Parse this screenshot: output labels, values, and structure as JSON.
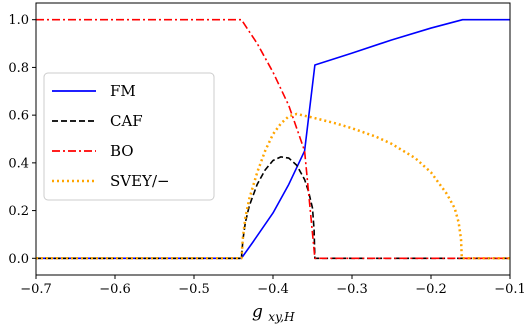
{
  "chart_data": {
    "type": "line",
    "title": "",
    "xlabel": "g",
    "xlabel_sub": "xy,H",
    "ylabel": "",
    "xlim": [
      -0.7,
      -0.1
    ],
    "ylim": [
      -0.07,
      1.07
    ],
    "xticks": [
      -0.7,
      -0.6,
      -0.5,
      -0.4,
      -0.3,
      -0.2,
      -0.1
    ],
    "xtick_labels": [
      "−0.7",
      "−0.6",
      "−0.5",
      "−0.4",
      "−0.3",
      "−0.2",
      "−0.1"
    ],
    "yticks": [
      0.0,
      0.2,
      0.4,
      0.6,
      0.8,
      1.0
    ],
    "ytick_labels": [
      "0.0",
      "0.2",
      "0.4",
      "0.6",
      "0.8",
      "1.0"
    ],
    "grid": false,
    "legend_position": "center-left",
    "series": [
      {
        "name": "FM",
        "color": "#0000ff",
        "dash": "solid",
        "x": [
          -0.7,
          -0.44,
          -0.425,
          -0.4,
          -0.38,
          -0.36,
          -0.347,
          -0.3,
          -0.25,
          -0.2,
          -0.16,
          -0.1
        ],
        "y": [
          0.0,
          0.0,
          0.07,
          0.19,
          0.31,
          0.45,
          0.81,
          0.86,
          0.915,
          0.965,
          1.0,
          1.0
        ]
      },
      {
        "name": "CAF",
        "color": "#000000",
        "dash": "dashed",
        "x": [
          -0.7,
          -0.44,
          -0.438,
          -0.435,
          -0.43,
          -0.42,
          -0.41,
          -0.4,
          -0.39,
          -0.38,
          -0.37,
          -0.36,
          -0.355,
          -0.35,
          -0.348,
          -0.347,
          -0.1
        ],
        "y": [
          0.0,
          0.0,
          0.08,
          0.15,
          0.22,
          0.31,
          0.37,
          0.41,
          0.425,
          0.42,
          0.39,
          0.33,
          0.28,
          0.21,
          0.12,
          0.0,
          0.0
        ]
      },
      {
        "name": "BO",
        "color": "#ff0000",
        "dash": "dashdot",
        "x": [
          -0.7,
          -0.44,
          -0.42,
          -0.4,
          -0.38,
          -0.36,
          -0.347,
          -0.1
        ],
        "y": [
          1.0,
          1.0,
          0.9,
          0.78,
          0.64,
          0.45,
          0.0,
          0.0
        ]
      },
      {
        "name": "SVEY/−",
        "color": "#ffa500",
        "dash": "dotted",
        "x": [
          -0.7,
          -0.44,
          -0.438,
          -0.435,
          -0.43,
          -0.42,
          -0.41,
          -0.4,
          -0.39,
          -0.38,
          -0.37,
          -0.35,
          -0.32,
          -0.3,
          -0.27,
          -0.25,
          -0.22,
          -0.2,
          -0.18,
          -0.17,
          -0.165,
          -0.162,
          -0.161,
          -0.1
        ],
        "y": [
          0.0,
          0.0,
          0.09,
          0.17,
          0.25,
          0.36,
          0.45,
          0.52,
          0.565,
          0.595,
          0.605,
          0.59,
          0.565,
          0.545,
          0.51,
          0.48,
          0.42,
          0.36,
          0.27,
          0.21,
          0.15,
          0.08,
          0.0,
          0.0
        ]
      }
    ]
  }
}
